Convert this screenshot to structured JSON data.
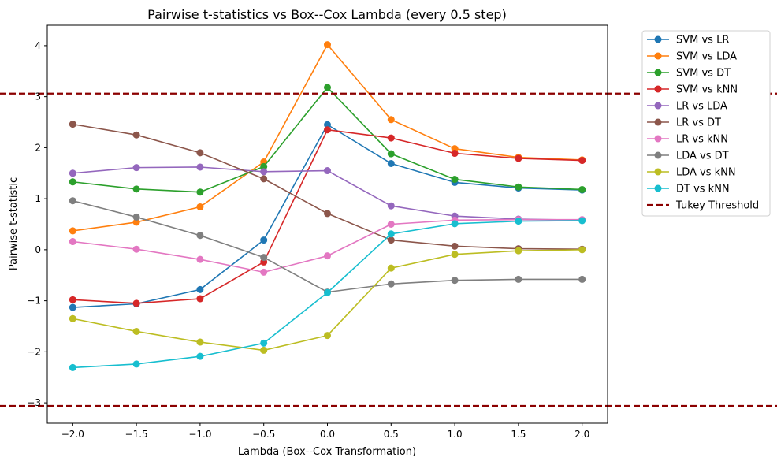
{
  "chart_data": {
    "type": "line",
    "title": "Pairwise t-statistics vs Box--Cox Lambda (every 0.5 step)",
    "xlabel": "Lambda (Box--Cox Transformation)",
    "ylabel": "Pairwise t-statistic",
    "x": [
      -2.0,
      -1.5,
      -1.0,
      -0.5,
      0.0,
      0.5,
      1.0,
      1.5,
      2.0
    ],
    "xlim": [
      -2.2,
      2.2
    ],
    "ylim": [
      -3.4,
      4.4
    ],
    "xticks": [
      -2.0,
      -1.5,
      -1.0,
      -0.5,
      0.0,
      0.5,
      1.0,
      1.5,
      2.0
    ],
    "xtick_labels": [
      "−2.0",
      "−1.5",
      "−1.0",
      "−0.5",
      "0.0",
      "0.5",
      "1.0",
      "1.5",
      "2.0"
    ],
    "yticks": [
      -3,
      -2,
      -1,
      0,
      1,
      2,
      3,
      4
    ],
    "ytick_labels": [
      "−3",
      "−2",
      "−1",
      "0",
      "1",
      "2",
      "3",
      "4"
    ],
    "grid": false,
    "legend_position": "outside-right-top",
    "series": [
      {
        "name": "SVM vs LR",
        "color": "#1f77b4",
        "values": [
          -1.13,
          -1.06,
          -0.78,
          0.19,
          2.45,
          1.69,
          1.32,
          1.21,
          1.17
        ]
      },
      {
        "name": "SVM vs LDA",
        "color": "#ff7f0e",
        "values": [
          0.37,
          0.54,
          0.84,
          1.72,
          4.02,
          2.55,
          1.98,
          1.81,
          1.76
        ]
      },
      {
        "name": "SVM vs DT",
        "color": "#2ca02c",
        "values": [
          1.33,
          1.19,
          1.13,
          1.63,
          3.18,
          1.88,
          1.38,
          1.23,
          1.18
        ]
      },
      {
        "name": "SVM vs kNN",
        "color": "#d62728",
        "values": [
          -0.98,
          -1.05,
          -0.96,
          -0.24,
          2.35,
          2.19,
          1.89,
          1.79,
          1.75
        ]
      },
      {
        "name": "LR vs LDA",
        "color": "#9467bd",
        "values": [
          1.5,
          1.61,
          1.62,
          1.53,
          1.55,
          0.86,
          0.66,
          0.6,
          0.58
        ]
      },
      {
        "name": "LR vs DT",
        "color": "#8c564b",
        "values": [
          2.46,
          2.25,
          1.9,
          1.39,
          0.71,
          0.19,
          0.07,
          0.02,
          0.01
        ]
      },
      {
        "name": "LR vs kNN",
        "color": "#e377c2",
        "values": [
          0.16,
          0.01,
          -0.19,
          -0.44,
          -0.12,
          0.5,
          0.58,
          0.59,
          0.59
        ]
      },
      {
        "name": "LDA vs DT",
        "color": "#7f7f7f",
        "values": [
          0.96,
          0.64,
          0.28,
          -0.15,
          -0.83,
          -0.67,
          -0.6,
          -0.58,
          -0.58
        ]
      },
      {
        "name": "LDA vs kNN",
        "color": "#bcbd22",
        "values": [
          -1.35,
          -1.6,
          -1.81,
          -1.97,
          -1.68,
          -0.36,
          -0.09,
          -0.02,
          0.0
        ]
      },
      {
        "name": "DT vs kNN",
        "color": "#17becf",
        "values": [
          -2.31,
          -2.24,
          -2.09,
          -1.83,
          -0.84,
          0.31,
          0.51,
          0.56,
          0.57
        ]
      }
    ],
    "threshold": {
      "name": "Tukey Threshold",
      "color": "#8b0000",
      "values": [
        3.06,
        -3.06
      ]
    }
  }
}
